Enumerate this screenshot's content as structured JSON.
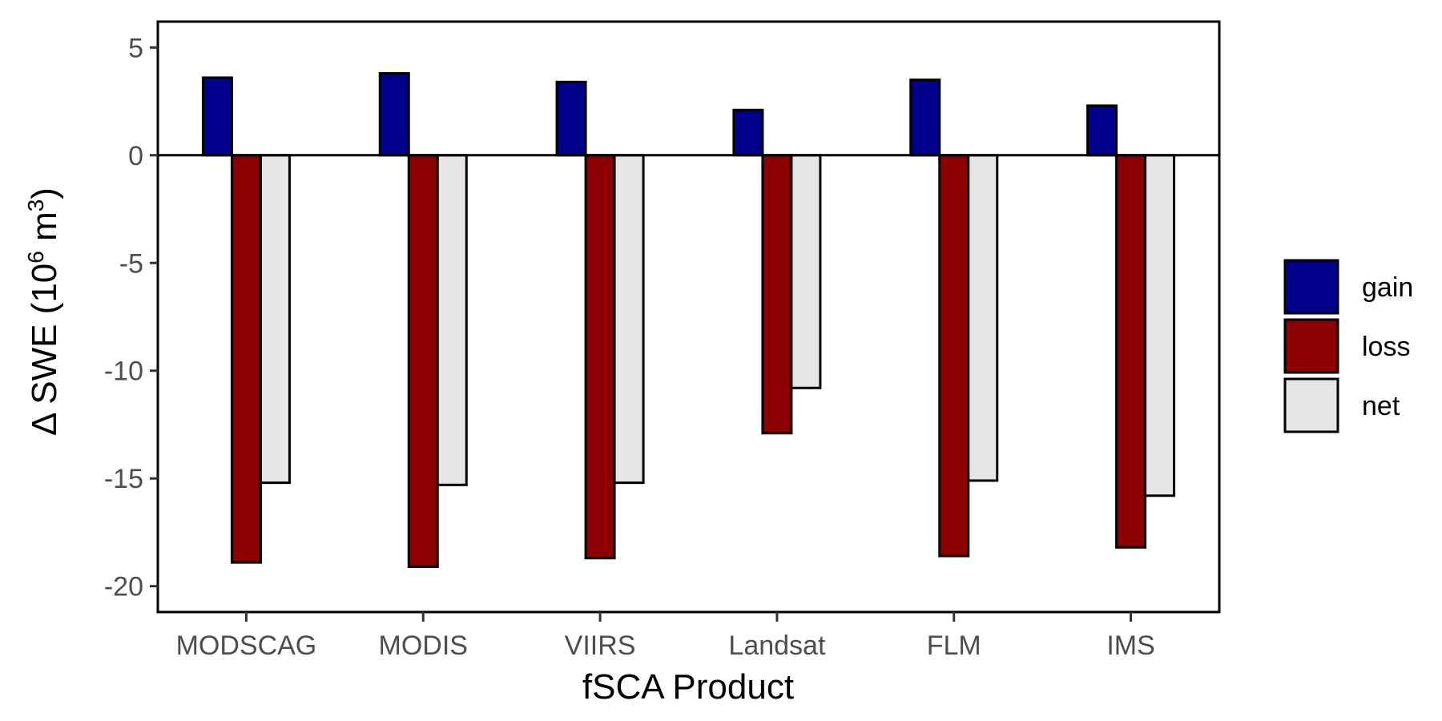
{
  "chart_data": {
    "type": "bar",
    "categories": [
      "MODSCAG",
      "MODIS",
      "VIIRS",
      "Landsat",
      "FLM",
      "IMS"
    ],
    "series": [
      {
        "name": "gain",
        "color": "#00008b",
        "values": [
          3.6,
          3.8,
          3.4,
          2.1,
          3.5,
          2.3
        ]
      },
      {
        "name": "loss",
        "color": "#8b0000",
        "values": [
          -18.9,
          -19.1,
          -18.7,
          -12.9,
          -18.6,
          -18.2
        ]
      },
      {
        "name": "net",
        "color": "#e5e5e5",
        "values": [
          -15.2,
          -15.3,
          -15.2,
          -10.8,
          -15.1,
          -15.8
        ]
      }
    ],
    "title": "",
    "xlabel": "fSCA Product",
    "ylabel": {
      "prefix": "Δ SWE (10",
      "exp1": "6",
      "middle": " m",
      "exp2": "3",
      "suffix": ")"
    },
    "ylim": [
      -21.2,
      6.2
    ],
    "yticks": [
      5,
      0,
      -5,
      -10,
      -15,
      -20
    ],
    "ytick_labels": [
      "5",
      "0",
      "-5",
      "-10",
      "-15",
      "-20"
    ],
    "legend_position": "right",
    "grid": false
  }
}
